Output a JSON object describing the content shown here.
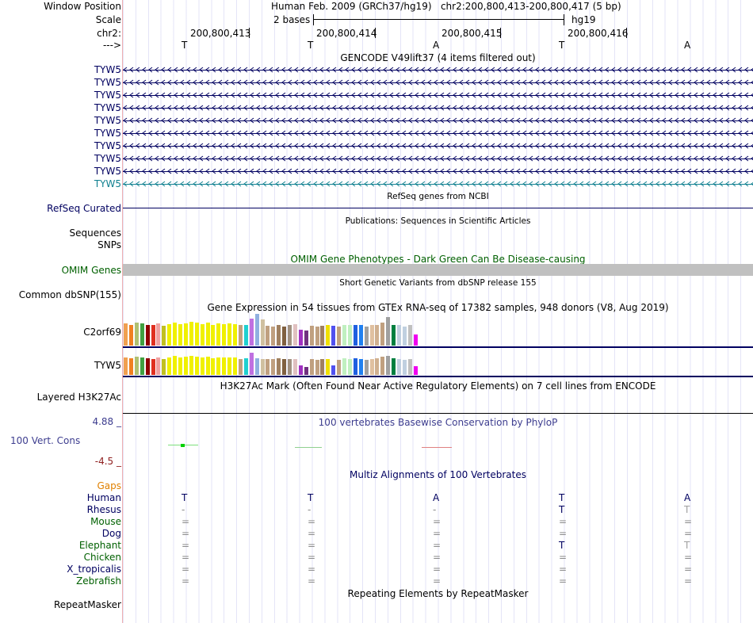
{
  "header": {
    "window_position_label": "Window Position",
    "window_position_value": "Human Feb. 2009 (GRCh37/hg19)   chr2:200,800,413-200,800,417 (5 bp)",
    "scale_label": "Scale",
    "scale_left": "2 bases",
    "scale_right": "hg19",
    "chr_label": "chr2:",
    "arrow_label": "--->",
    "coords": [
      "200,800,413",
      "200,800,414",
      "200,800,415",
      "200,800,416"
    ],
    "bases": [
      "T",
      "T",
      "A",
      "T",
      "A"
    ]
  },
  "gencode": {
    "title": "GENCODE V49lift37 (4 items filtered out)",
    "labels": [
      "TYW5",
      "TYW5",
      "TYW5",
      "TYW5",
      "TYW5",
      "TYW5",
      "TYW5",
      "TYW5",
      "TYW5",
      "TYW5"
    ]
  },
  "refseq": {
    "title": "RefSeq genes from NCBI",
    "label": "RefSeq Curated"
  },
  "publications": {
    "title": "Publications: Sequences in Scientific Articles",
    "label1": "Sequences",
    "label2": "SNPs"
  },
  "omim": {
    "title": "OMIM Gene Phenotypes - Dark Green Can Be Disease-causing",
    "label": "OMIM Genes"
  },
  "dbsnp": {
    "title": "Short Genetic Variants from dbSNP release 155",
    "label": "Common dbSNP(155)"
  },
  "gtex": {
    "title": "Gene Expression in 54 tissues from GTEx RNA-seq of 17382 samples, 948 donors (V8, Aug 2019)",
    "gene1": "C2orf69",
    "gene2": "TYW5",
    "colors": [
      "#f0a050",
      "#f08020",
      "#b0c070",
      "#40a040",
      "#900000",
      "#e03020",
      "#f0a0a0",
      "#c0c020",
      "#f0f000",
      "#f0f000",
      "#f0f000",
      "#f0f000",
      "#f0f000",
      "#f0f000",
      "#f0f000",
      "#f0f000",
      "#f0f000",
      "#f0f000",
      "#f0f000",
      "#f0f000",
      "#f0f000",
      "#c0a080",
      "#20d0d0",
      "#c070e0",
      "#90b0e0",
      "#d0c0a0",
      "#c0a080",
      "#c0a080",
      "#a08060",
      "#806040",
      "#a09080",
      "#e0c0c0",
      "#a030c0",
      "#703080",
      "#c0a080",
      "#c0a080",
      "#a08060",
      "#f0e000",
      "#5050f0",
      "#c0a080",
      "#c0f0c0",
      "#c0f0c0",
      "#2060e0",
      "#2080f0",
      "#a0a0a0",
      "#e0c0a0",
      "#d0b090",
      "#c0a080",
      "#a0a0a0",
      "#008040",
      "#c0d0e0",
      "#c0d0e0",
      "#c0c0c0",
      "#f000f0"
    ],
    "values1": [
      0.7,
      0.65,
      0.72,
      0.7,
      0.66,
      0.64,
      0.7,
      0.63,
      0.68,
      0.72,
      0.68,
      0.7,
      0.75,
      0.72,
      0.68,
      0.72,
      0.66,
      0.7,
      0.68,
      0.7,
      0.68,
      0.64,
      0.66,
      0.85,
      1.0,
      0.82,
      0.62,
      0.6,
      0.66,
      0.6,
      0.64,
      0.68,
      0.5,
      0.48,
      0.62,
      0.6,
      0.62,
      0.64,
      0.62,
      0.6,
      0.66,
      0.64,
      0.66,
      0.64,
      0.6,
      0.64,
      0.66,
      0.72,
      0.9,
      0.66,
      0.64,
      0.6,
      0.64,
      0.34
    ],
    "values2": [
      0.7,
      0.66,
      0.72,
      0.7,
      0.66,
      0.64,
      0.68,
      0.64,
      0.68,
      0.74,
      0.68,
      0.72,
      0.76,
      0.72,
      0.68,
      0.72,
      0.66,
      0.7,
      0.68,
      0.7,
      0.68,
      0.64,
      0.66,
      0.86,
      0.66,
      0.62,
      0.64,
      0.62,
      0.66,
      0.62,
      0.64,
      0.62,
      0.36,
      0.3,
      0.62,
      0.6,
      0.62,
      0.64,
      0.36,
      0.6,
      0.66,
      0.64,
      0.66,
      0.64,
      0.6,
      0.64,
      0.66,
      0.72,
      0.76,
      0.66,
      0.64,
      0.6,
      0.64,
      0.34
    ]
  },
  "h3k27ac": {
    "title": "H3K27Ac Mark (Often Found Near Active Regulatory Elements) on 7 cell lines from ENCODE",
    "label": "Layered H3K27Ac"
  },
  "phylop": {
    "title": "100 vertebrates Basewise Conservation by PhyloP",
    "label": "100 Vert. Cons",
    "max": "4.88 _",
    "min": "-4.5 _"
  },
  "multiz": {
    "title": "Multiz Alignments of 100 Vertebrates",
    "gaps_label": "Gaps",
    "species": [
      {
        "name": "Human",
        "cells": [
          "T",
          "T",
          "A",
          "T",
          "A"
        ]
      },
      {
        "name": "Rhesus",
        "cells": [
          "-",
          "-",
          "-",
          "T",
          "T"
        ]
      },
      {
        "name": "Mouse",
        "cells": [
          "=",
          "=",
          "=",
          "=",
          "="
        ]
      },
      {
        "name": "Dog",
        "cells": [
          "=",
          "=",
          "=",
          "=",
          "="
        ]
      },
      {
        "name": "Elephant",
        "cells": [
          "=",
          "=",
          "=",
          "T",
          "T"
        ]
      },
      {
        "name": "Chicken",
        "cells": [
          "=",
          "=",
          "=",
          "=",
          "="
        ]
      },
      {
        "name": "X_tropicalis",
        "cells": [
          "=",
          "=",
          "=",
          "=",
          "="
        ]
      },
      {
        "name": "Zebrafish",
        "cells": [
          "=",
          "=",
          "=",
          "=",
          "="
        ]
      }
    ]
  },
  "repeatmasker": {
    "title": "Repeating Elements by RepeatMasker",
    "label": "RepeatMasker"
  }
}
